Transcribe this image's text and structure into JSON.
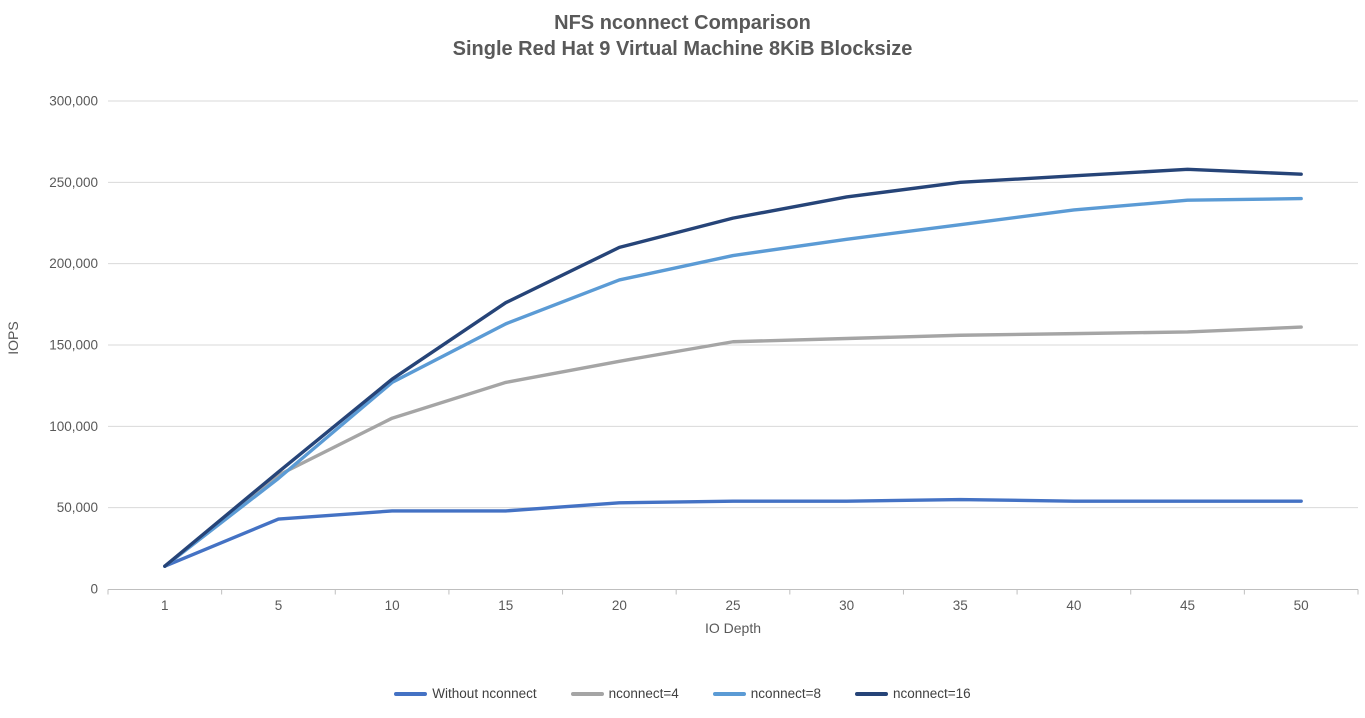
{
  "chart_data": {
    "type": "line",
    "title": "NFS nconnect Comparison",
    "subtitle": "Single Red Hat 9 Virtual Machine 8KiB Blocksize",
    "xlabel": "IO Depth",
    "ylabel": "IOPS",
    "categories": [
      1,
      5,
      10,
      15,
      20,
      25,
      30,
      35,
      40,
      45,
      50
    ],
    "x_axis_type": "categorical",
    "ylim": [
      0,
      300000
    ],
    "ytick_interval": 50000,
    "ytick_labels": [
      "0",
      "50,000",
      "100,000",
      "150,000",
      "200,000",
      "250,000",
      "300,000"
    ],
    "grid": "horizontal",
    "legend_position": "bottom",
    "series": [
      {
        "name": "Without nconnect",
        "color": "#4472C4",
        "values": [
          14000,
          43000,
          48000,
          48000,
          53000,
          54000,
          54000,
          55000,
          54000,
          54000,
          54000
        ]
      },
      {
        "name": "nconnect=4",
        "color": "#A5A5A5",
        "values": [
          14000,
          70000,
          105000,
          127000,
          140000,
          152000,
          154000,
          156000,
          157000,
          158000,
          161000
        ]
      },
      {
        "name": "nconnect=8",
        "color": "#5B9BD5",
        "values": [
          14000,
          68000,
          127000,
          163000,
          190000,
          205000,
          215000,
          224000,
          233000,
          239000,
          240000
        ]
      },
      {
        "name": "nconnect=16",
        "color": "#264478",
        "values": [
          14000,
          72000,
          129000,
          176000,
          210000,
          228000,
          241000,
          250000,
          254000,
          258000,
          255000
        ]
      }
    ],
    "colors": {
      "title_text": "#595959",
      "axis_text": "#595959",
      "gridline": "#D9D9D9",
      "axis_line": "#BFBFBF",
      "background": "#FFFFFF"
    }
  }
}
